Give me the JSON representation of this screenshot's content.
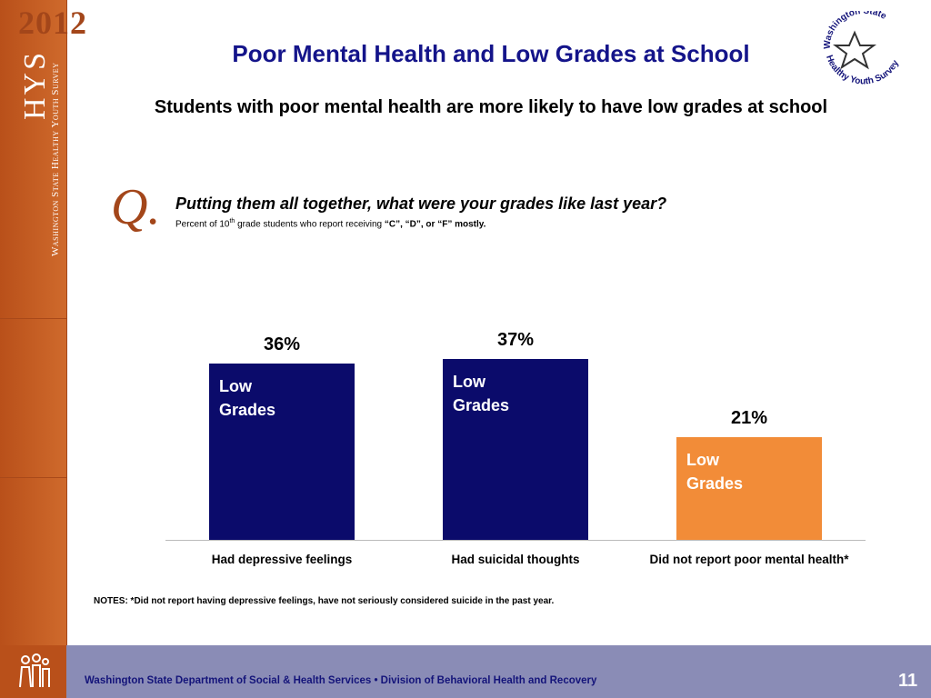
{
  "brand": {
    "year": "2012",
    "short": "HYS",
    "long": "Washington State Healthy Youth Survey"
  },
  "logo": {
    "top": "Washington State",
    "bottom": "Healthy Youth Survey"
  },
  "question": {
    "mark": "Q.",
    "text": "Putting them all together, what were your grades like last year?",
    "detail": {
      "pre": "Percent of 10",
      "sup": "th",
      "mid": " grade students who report receiving ",
      "bold": "“C”, “D”, or “F” mostly."
    }
  },
  "notes": "NOTES: *Did not report having depressive feelings, have not seriously considered suicide in the past year.",
  "footer": {
    "text": "Washington State Department of Social & Health Services • Division of Behavioral Health and Recovery",
    "page": "11"
  },
  "chart_data": {
    "type": "bar",
    "title": "Poor Mental Health and Low Grades at School",
    "subtitle": "Students with poor mental health are more likely to have low grades at school",
    "categories": [
      "Had depressive feelings",
      "Had suicidal thoughts",
      "Did not report poor mental health*"
    ],
    "values": [
      36,
      37,
      21
    ],
    "value_labels": [
      "36%",
      "37%",
      "21%"
    ],
    "bar_labels": [
      "Low Grades",
      "Low Grades",
      "Low Grades"
    ],
    "colors": [
      "#0b0b6b",
      "#0b0b6b",
      "#f28c38"
    ]
  }
}
